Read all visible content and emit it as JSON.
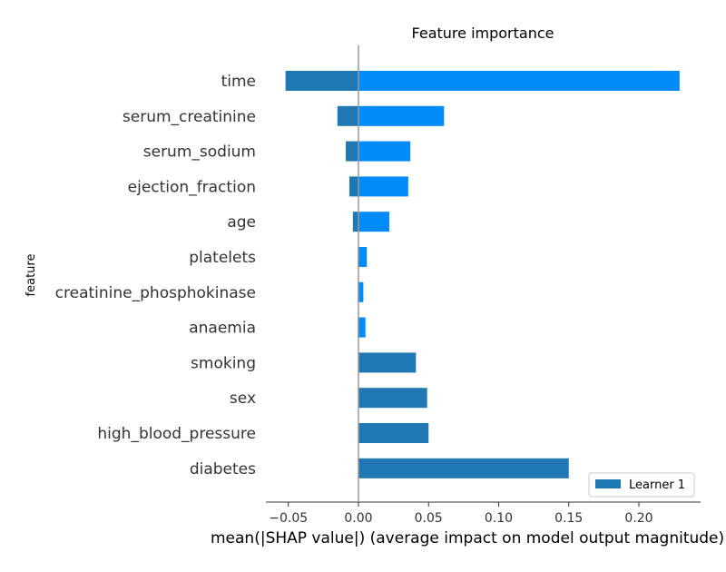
{
  "chart_data": {
    "type": "bar",
    "orientation": "horizontal",
    "title": "Feature importance",
    "xlabel": "mean(|SHAP value|) (average impact on model output magnitude)",
    "ylabel": "feature",
    "xlim": [
      -0.066,
      0.244
    ],
    "xticks": [
      -0.05,
      0.0,
      0.05,
      0.1,
      0.15,
      0.2
    ],
    "xtick_labels": [
      "−0.05",
      "0.00",
      "0.05",
      "0.10",
      "0.15",
      "0.20"
    ],
    "categories": [
      "time",
      "serum_creatinine",
      "serum_sodium",
      "ejection_fraction",
      "age",
      "platelets",
      "creatinine_phosphokinase",
      "anaemia",
      "smoking",
      "sex",
      "high_blood_pressure",
      "diabetes"
    ],
    "series": [
      {
        "name": "Learner 1",
        "color": "#1f77b4",
        "values": [
          -0.052,
          -0.015,
          -0.009,
          -0.0065,
          -0.004,
          -0.0005,
          -0.0005,
          -0.0005,
          0.041,
          0.049,
          0.05,
          0.15
        ]
      },
      {
        "name": "",
        "color": "#008bfb",
        "values": [
          0.229,
          0.061,
          0.037,
          0.0355,
          0.022,
          0.006,
          0.0035,
          0.005,
          0,
          0,
          0,
          0
        ]
      }
    ],
    "legend_position": "bottom-right",
    "grid": false
  }
}
